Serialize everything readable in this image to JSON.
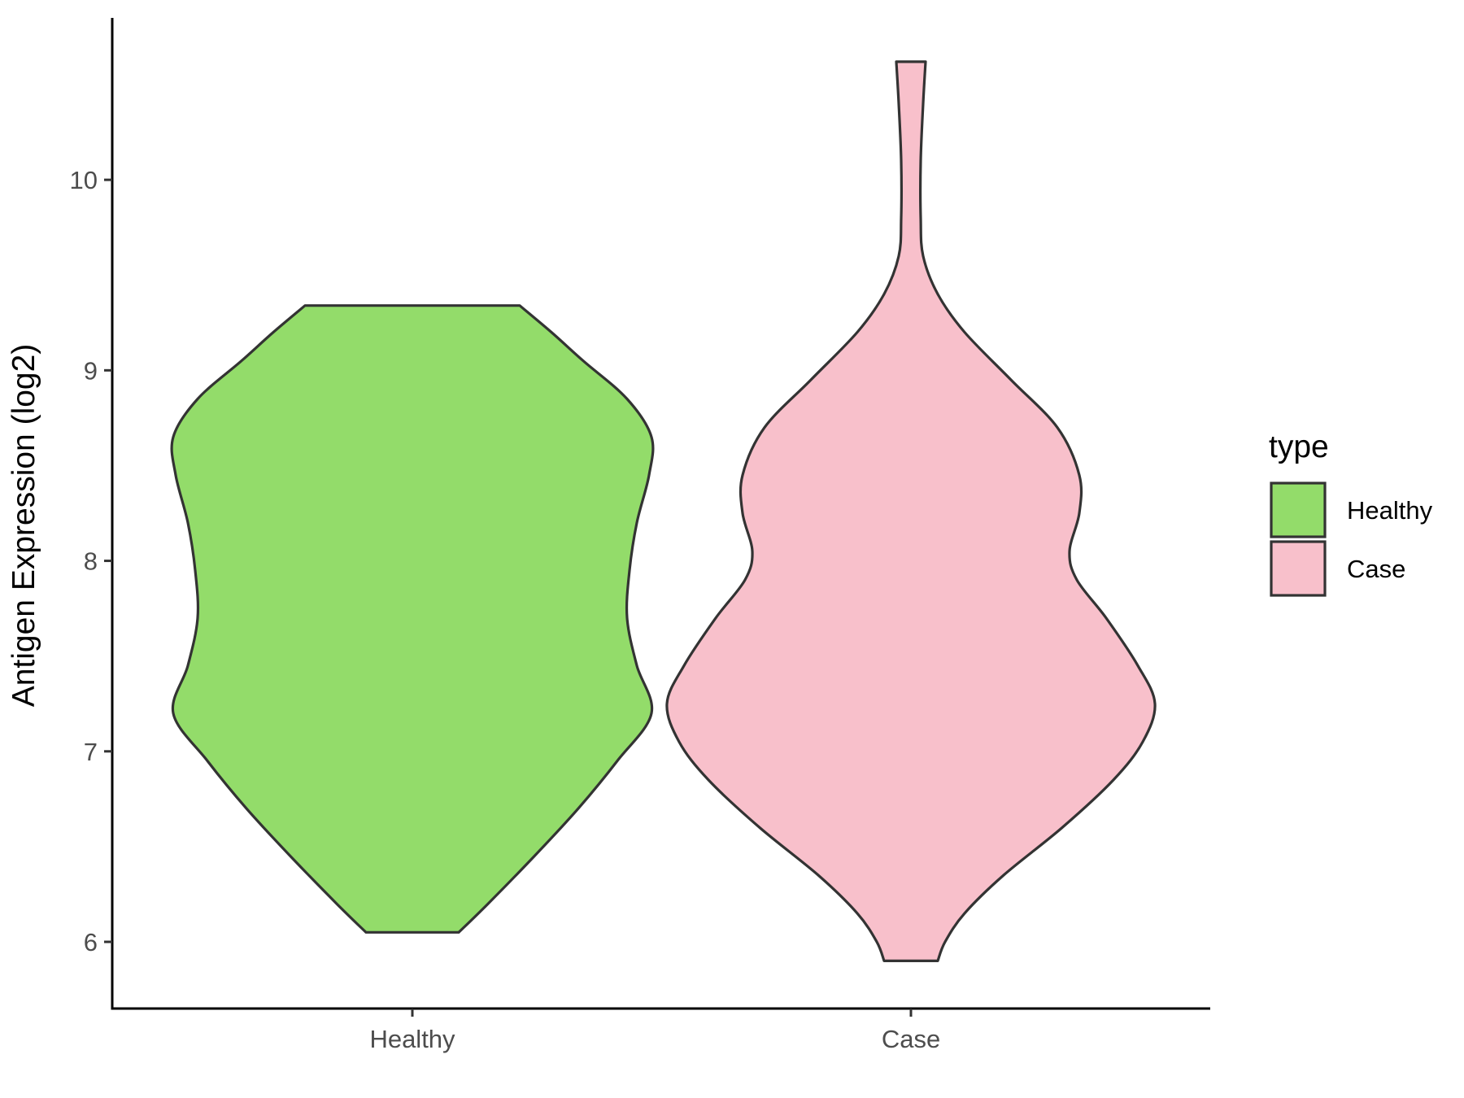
{
  "chart_data": {
    "type": "violin",
    "title": "",
    "xlabel": "",
    "ylabel": "Antigen Expression (log2)",
    "ylim": [
      5.65,
      10.85
    ],
    "yticks": [
      6,
      7,
      8,
      9,
      10
    ],
    "categories": [
      "Healthy",
      "Case"
    ],
    "grid": false,
    "legend": {
      "title": "type",
      "position": "right",
      "entries": [
        {
          "label": "Healthy",
          "color": "#93DC6A"
        },
        {
          "label": "Case",
          "color": "#F8C0CB"
        }
      ]
    },
    "series": [
      {
        "category": "Healthy",
        "color": "#93DC6A",
        "min": 6.05,
        "max": 9.34,
        "density_profile": [
          [
            6.05,
            0.19
          ],
          [
            6.2,
            0.31
          ],
          [
            6.45,
            0.5
          ],
          [
            6.7,
            0.68
          ],
          [
            6.95,
            0.84
          ],
          [
            7.2,
            0.98
          ],
          [
            7.45,
            0.92
          ],
          [
            7.7,
            0.88
          ],
          [
            7.95,
            0.89
          ],
          [
            8.2,
            0.92
          ],
          [
            8.45,
            0.97
          ],
          [
            8.65,
            0.98
          ],
          [
            8.85,
            0.88
          ],
          [
            9.05,
            0.7
          ],
          [
            9.2,
            0.57
          ],
          [
            9.34,
            0.44
          ]
        ]
      },
      {
        "category": "Case",
        "color": "#F8C0CB",
        "min": 5.9,
        "max": 10.62,
        "density_profile": [
          [
            5.9,
            0.11
          ],
          [
            6.0,
            0.14
          ],
          [
            6.15,
            0.22
          ],
          [
            6.35,
            0.38
          ],
          [
            6.6,
            0.62
          ],
          [
            6.85,
            0.83
          ],
          [
            7.05,
            0.95
          ],
          [
            7.25,
            1.0
          ],
          [
            7.45,
            0.93
          ],
          [
            7.7,
            0.8
          ],
          [
            7.9,
            0.68
          ],
          [
            8.05,
            0.65
          ],
          [
            8.25,
            0.69
          ],
          [
            8.45,
            0.69
          ],
          [
            8.7,
            0.6
          ],
          [
            8.95,
            0.41
          ],
          [
            9.2,
            0.22
          ],
          [
            9.4,
            0.11
          ],
          [
            9.6,
            0.05
          ],
          [
            9.8,
            0.04
          ],
          [
            10.1,
            0.04
          ],
          [
            10.4,
            0.05
          ],
          [
            10.62,
            0.06
          ]
        ]
      }
    ]
  }
}
